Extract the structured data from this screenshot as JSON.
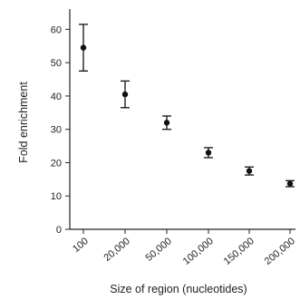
{
  "chart_data": {
    "type": "scatter",
    "xlabel": "Size of region (nucleotides)",
    "ylabel": "Fold enrichment",
    "categories": [
      "100",
      "20,000",
      "50,000",
      "100,000",
      "150,000",
      "200,000"
    ],
    "values": [
      54.5,
      40.5,
      32,
      23,
      17.5,
      13.7
    ],
    "error_low": [
      47.5,
      36.5,
      30,
      21.5,
      16.3,
      12.8
    ],
    "error_high": [
      61.5,
      44.5,
      34,
      24.5,
      18.7,
      14.6
    ],
    "ylim": [
      0,
      65
    ],
    "yticks": [
      0,
      10,
      20,
      30,
      40,
      50,
      60
    ],
    "grid": false,
    "legend": "none"
  }
}
